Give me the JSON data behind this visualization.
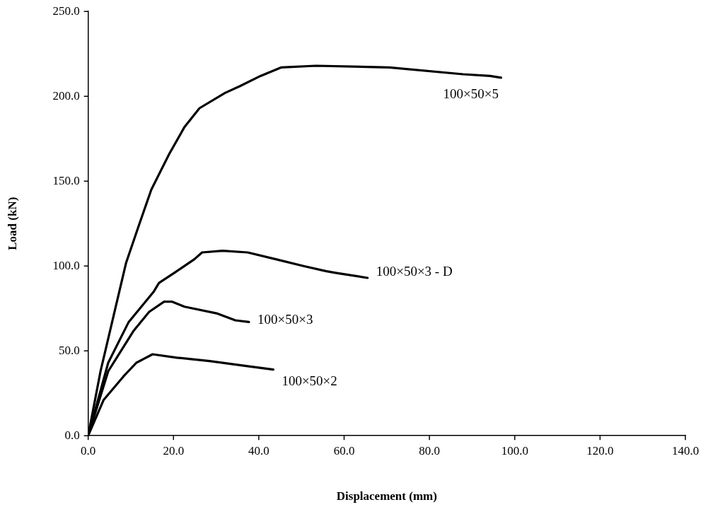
{
  "chart_data": {
    "type": "line",
    "xlabel": "Displacement (mm)",
    "ylabel": "Load (kN)",
    "xlim": [
      0,
      140
    ],
    "ylim": [
      0,
      250
    ],
    "xticks": [
      {
        "value": 0,
        "label": "0.0"
      },
      {
        "value": 20,
        "label": "20.0"
      },
      {
        "value": 40,
        "label": "40.0"
      },
      {
        "value": 60,
        "label": "60.0"
      },
      {
        "value": 80,
        "label": "80.0"
      },
      {
        "value": 100,
        "label": "100.0"
      },
      {
        "value": 120,
        "label": "120.0"
      },
      {
        "value": 140,
        "label": "140.0"
      }
    ],
    "yticks": [
      {
        "value": 0,
        "label": "0.0"
      },
      {
        "value": 50,
        "label": "50.0"
      },
      {
        "value": 100,
        "label": "100.0"
      },
      {
        "value": 150,
        "label": "150.0"
      },
      {
        "value": 200,
        "label": "200.0"
      },
      {
        "value": 250,
        "label": "250.0"
      }
    ],
    "grid": false,
    "legend": false,
    "marker": "none",
    "line_style": "solid",
    "series": [
      {
        "name": "100×50×5",
        "color": "#000000",
        "x": [
          0,
          2.9,
          5.9,
          8.9,
          11.9,
          14.8,
          19,
          22.6,
          26.1,
          32.1,
          35.6,
          40.4,
          45.2,
          53.4,
          70.6,
          87.9,
          94.2,
          96.8
        ],
        "values": [
          0,
          38,
          70,
          102,
          124,
          145,
          166,
          182,
          193,
          202,
          206,
          212,
          217,
          218,
          217,
          213,
          212,
          211
        ]
      },
      {
        "name": "100×50×3 - D",
        "color": "#000000",
        "x": [
          0,
          4.7,
          9.5,
          15.4,
          16.6,
          20.2,
          24.9,
          26.7,
          31.5,
          37.4,
          44,
          50.5,
          55.7,
          58,
          65.5
        ],
        "values": [
          0,
          43,
          67,
          85,
          90,
          96,
          104,
          108,
          109,
          108,
          104,
          100,
          97,
          96,
          93
        ]
      },
      {
        "name": "100×50×3",
        "color": "#000000",
        "x": [
          0,
          4.7,
          10.7,
          14.3,
          17.8,
          19.6,
          22.6,
          30.3,
          34.5,
          37.7
        ],
        "values": [
          0,
          38,
          62,
          73,
          79,
          79,
          76,
          72,
          68,
          67
        ]
      },
      {
        "name": "100×50×2",
        "color": "#000000",
        "x": [
          0,
          3.6,
          8.3,
          11.3,
          15.1,
          20.8,
          28.5,
          37.4,
          43.4
        ],
        "values": [
          0,
          21,
          35,
          43,
          48,
          46,
          44,
          41,
          39
        ]
      }
    ]
  }
}
